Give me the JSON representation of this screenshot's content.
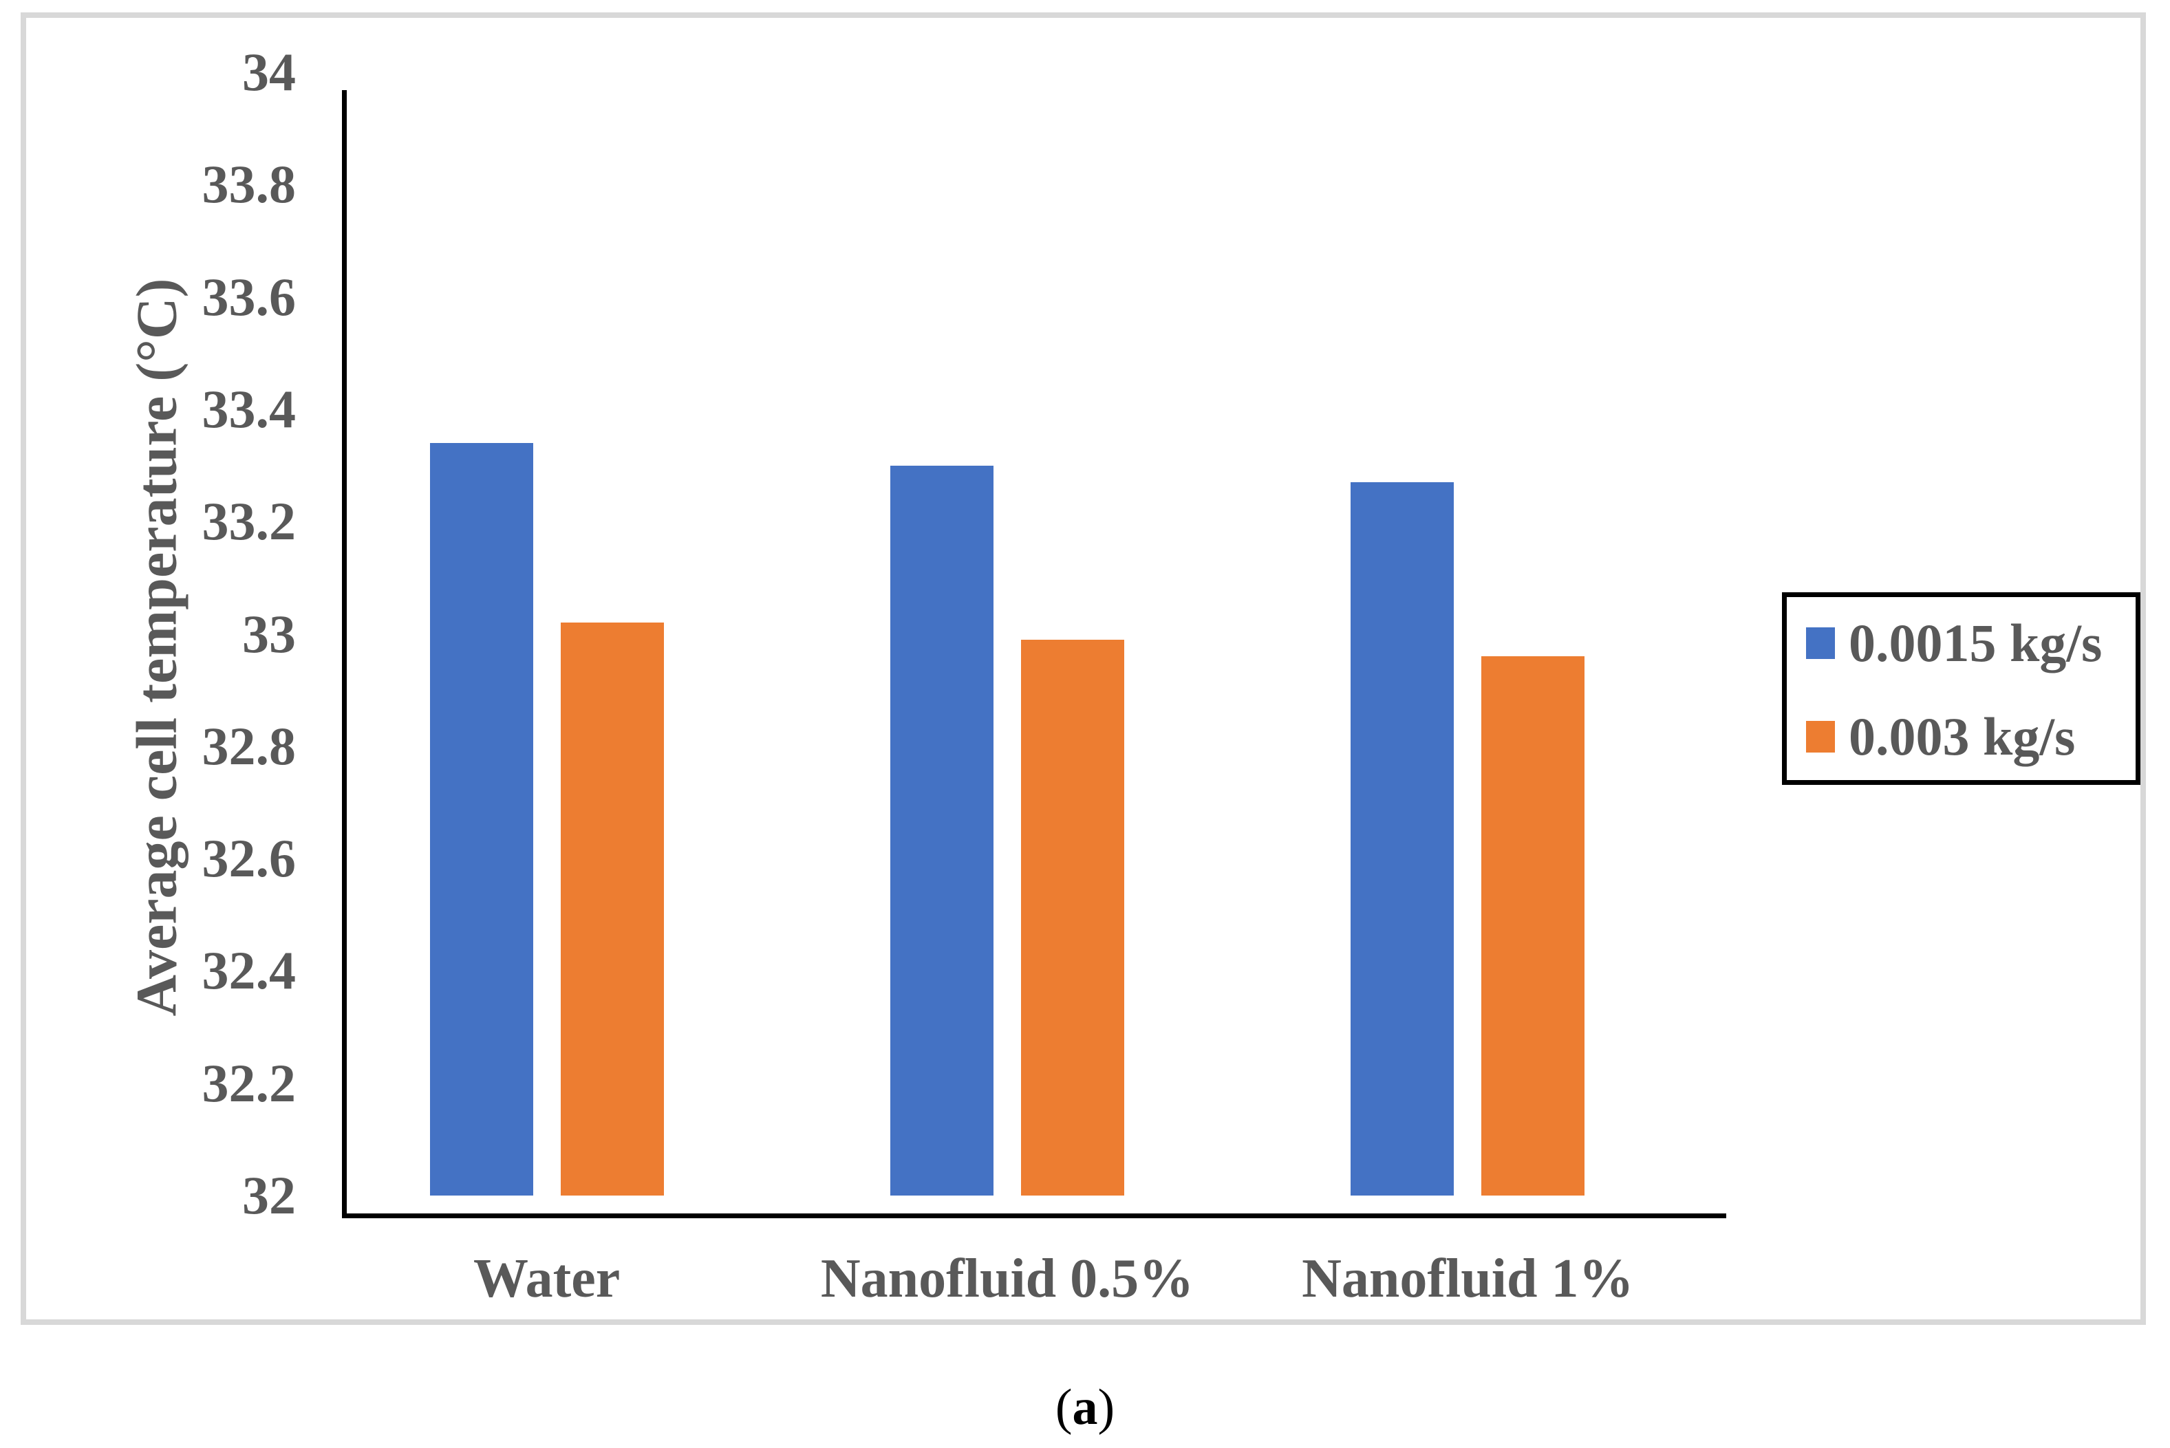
{
  "chart_data": {
    "type": "bar",
    "title": "",
    "xlabel": "",
    "ylabel": "Average cell temperature (°C)",
    "ylim": [
      32,
      34
    ],
    "ytick_step": 0.2,
    "yticks": [
      32,
      32.2,
      32.4,
      32.6,
      32.8,
      33,
      33.2,
      33.4,
      33.6,
      33.8,
      34
    ],
    "ytick_labels": [
      "32",
      "32.2",
      "32.4",
      "32.6",
      "32.8",
      "33",
      "33.2",
      "33.4",
      "33.6",
      "33.8",
      "34"
    ],
    "categories": [
      "Water",
      "Nanofluid 0.5%",
      "Nanofluid 1%"
    ],
    "series": [
      {
        "name": "0.0015 kg/s",
        "color": "#4472C4",
        "values": [
          33.34,
          33.3,
          33.27
        ]
      },
      {
        "name": "0.003 kg/s",
        "color": "#ED7D31",
        "values": [
          33.02,
          32.99,
          32.96
        ]
      }
    ],
    "legend_position": "right",
    "grid": false
  },
  "legend": {
    "items": [
      {
        "label": "0.0015 kg/s",
        "color": "#4472C4"
      },
      {
        "label": "0.003 kg/s",
        "color": "#ED7D31"
      }
    ]
  },
  "caption": {
    "open": "(",
    "letter": "a",
    "close": ")"
  },
  "colors": {
    "bar_blue": "#4472C4",
    "bar_orange": "#ED7D31",
    "axis": "#000000",
    "text_gray": "#595959",
    "frame_gray": "#d8d8d8",
    "background": "#ffffff"
  }
}
